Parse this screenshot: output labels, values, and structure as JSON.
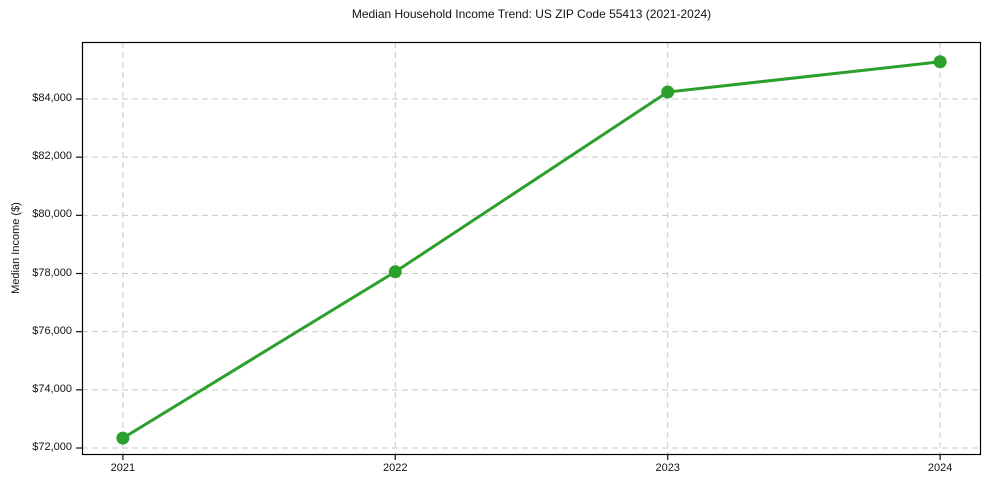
{
  "figure": {
    "background": "#ffffff"
  },
  "chart_data": {
    "type": "line",
    "title": "Median Household Income Trend: US ZIP Code 55413 (2021-2024)",
    "xlabel": "",
    "ylabel": "Median Income ($)",
    "x": [
      2021,
      2022,
      2023,
      2024
    ],
    "x_tick_labels": [
      "2021",
      "2022",
      "2023",
      "2024"
    ],
    "y_ticks": [
      72000,
      74000,
      76000,
      78000,
      80000,
      82000,
      84000
    ],
    "y_tick_labels": [
      "$72,000",
      "$74,000",
      "$76,000",
      "$78,000",
      "$80,000",
      "$82,000",
      "$84,000"
    ],
    "series": [
      {
        "values": [
          72340,
          78060,
          84240,
          85280
        ],
        "color": "#2ca02c",
        "marker": "circle",
        "line_width": 3,
        "marker_size": 13
      }
    ],
    "xlim": [
      2020.85,
      2024.15
    ],
    "ylim": [
      71760,
      85960
    ],
    "grid": true,
    "grid_style": "dashed",
    "grid_color": "#c9c9c9",
    "legend_position": "none"
  }
}
